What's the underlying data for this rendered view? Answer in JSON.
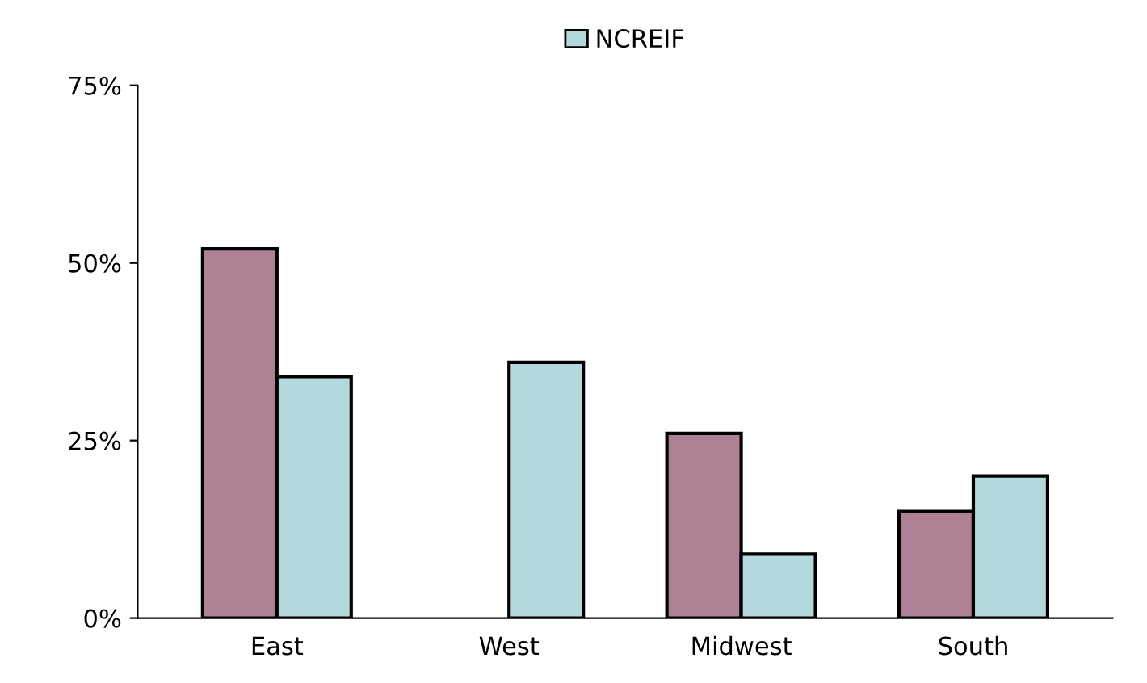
{
  "chart_data": {
    "type": "bar",
    "categories": [
      "East",
      "West",
      "Midwest",
      "South"
    ],
    "series": [
      {
        "color": "#ae8196",
        "values": [
          52,
          0,
          26,
          15
        ]
      },
      {
        "name": "NCREIF",
        "color": "#b4d9dc",
        "values": [
          34,
          36,
          9,
          20
        ]
      }
    ],
    "ylim": [
      0,
      75
    ],
    "yticks": [
      {
        "value": 0,
        "label": "0%"
      },
      {
        "value": 25,
        "label": "25%"
      },
      {
        "value": 50,
        "label": "50%"
      },
      {
        "value": 75,
        "label": "75%"
      }
    ],
    "grid": false,
    "legend": "top"
  }
}
